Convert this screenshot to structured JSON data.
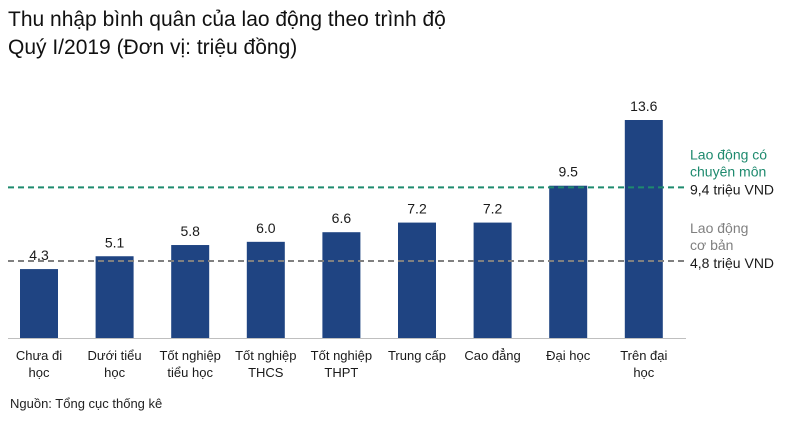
{
  "title_line1": "Thu nhập bình quân của lao động theo trình độ",
  "title_line2": "Quý I/2019 (Đơn vị: triệu đồng)",
  "source": "Nguồn: Tổng cục thống kê",
  "chart_data": {
    "type": "bar",
    "categories": [
      [
        "Chưa đi",
        "học"
      ],
      [
        "Dưới tiểu",
        "học"
      ],
      [
        "Tốt nghiệp",
        "tiểu học"
      ],
      [
        "Tốt nghiệp",
        "THCS"
      ],
      [
        "Tốt nghiệp",
        "THPT"
      ],
      [
        "Trung cấp"
      ],
      [
        "Cao đẳng"
      ],
      [
        "Đại học"
      ],
      [
        "Trên đại",
        "học"
      ]
    ],
    "values": [
      4.3,
      5.1,
      5.8,
      6.0,
      6.6,
      7.2,
      7.2,
      9.5,
      13.6
    ],
    "value_labels": [
      "4.3",
      "5.1",
      "5.8",
      "6.0",
      "6.6",
      "7.2",
      "7.2",
      "9.5",
      "13.6"
    ],
    "ylim": [
      0,
      14.0
    ],
    "grid": false,
    "bar_color": "#1f4482",
    "reference_lines": [
      {
        "value": 9.4,
        "label_lines": [
          "Lao động có",
          "chuyên môn"
        ],
        "value_label": "9,4 triệu VND",
        "color": "#1e8a6e",
        "label_color": "#1e8a6e"
      },
      {
        "value": 4.8,
        "label_lines": [
          "Lao động",
          "cơ bản"
        ],
        "value_label": "4,8 triệu VND",
        "color": "#808080",
        "label_color": "#808080"
      }
    ]
  }
}
